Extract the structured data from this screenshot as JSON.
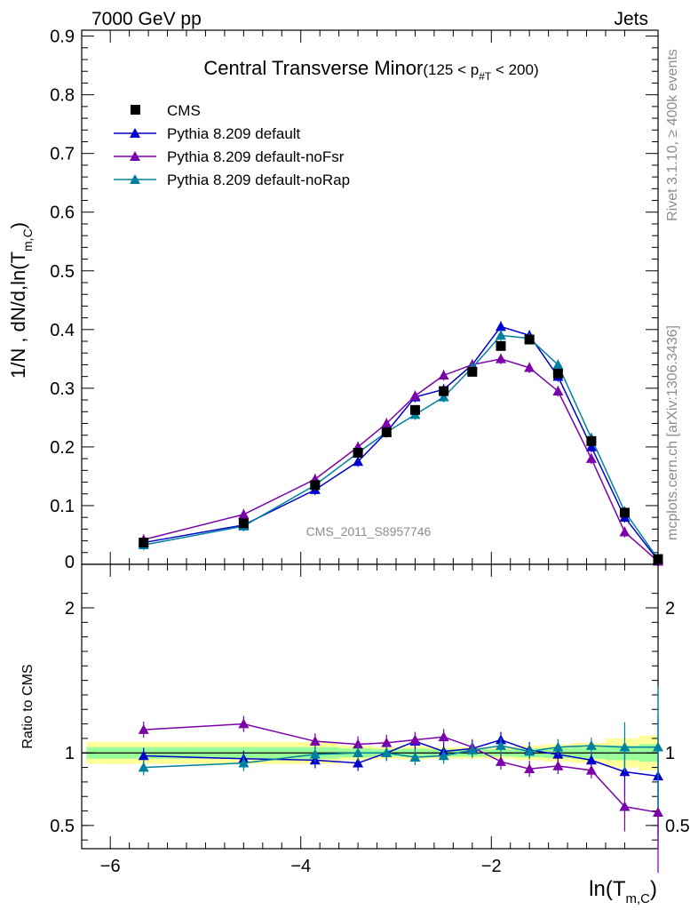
{
  "header": {
    "left": "7000 GeV pp",
    "right": "Jets"
  },
  "side_labels": {
    "rivet": "Rivet 3.1.10, ≥ 400k events",
    "mcplots": "mcplots.cern.ch [arXiv:1306.3436]"
  },
  "watermark": "CMS_2011_S8957746",
  "chart_data": [
    {
      "type": "scatter",
      "title": "Central Transverse Minor",
      "title_cut": "(125 < p",
      "title_cut_sub": "#T",
      "title_cut_end": " < 200)",
      "ylabel_parts": {
        "main": "1/N , dN/d,ln(T",
        "sub": "m,C",
        "close": ")"
      },
      "xlim": [
        -6.3,
        -0.25
      ],
      "ylim": [
        0,
        0.91
      ],
      "yticks": [
        0.1,
        0.2,
        0.3,
        0.4,
        0.5,
        0.6,
        0.7,
        0.8,
        0.9
      ],
      "ytick_labels": [
        "0.1",
        "0.2",
        "0.3",
        "0.4",
        "0.5",
        "0.6",
        "0.7",
        "0.8",
        "0.9"
      ],
      "ytick_zero": "0",
      "x": [
        -5.65,
        -4.6,
        -3.85,
        -3.4,
        -3.1,
        -2.8,
        -2.5,
        -2.2,
        -1.9,
        -1.6,
        -1.3,
        -0.95,
        -0.6,
        -0.25
      ],
      "legend": [
        "CMS",
        "Pythia 8.209 default",
        "Pythia 8.209 default-noFsr",
        "Pythia 8.209 default-noRap"
      ],
      "series": [
        {
          "name": "CMS",
          "color": "#000000",
          "marker": "square",
          "values": [
            0.037,
            0.07,
            0.135,
            0.19,
            0.225,
            0.263,
            0.295,
            0.328,
            0.372,
            0.383,
            0.325,
            0.21,
            0.088,
            0.009
          ]
        },
        {
          "name": "Pythia 8.209 default",
          "color": "#0000cc",
          "marker": "triangle",
          "values": [
            0.037,
            0.067,
            0.127,
            0.175,
            0.225,
            0.285,
            0.298,
            0.34,
            0.405,
            0.39,
            0.32,
            0.2,
            0.08,
            0.007
          ]
        },
        {
          "name": "Pythia 8.209 default-noFsr",
          "color": "#7a00aa",
          "marker": "triangle",
          "values": [
            0.042,
            0.085,
            0.145,
            0.2,
            0.24,
            0.287,
            0.322,
            0.34,
            0.35,
            0.335,
            0.295,
            0.18,
            0.055,
            0.005
          ]
        },
        {
          "name": "Pythia 8.209 default-noRap",
          "color": "#0080a0",
          "marker": "triangle",
          "values": [
            0.033,
            0.065,
            0.135,
            0.19,
            0.225,
            0.255,
            0.285,
            0.335,
            0.39,
            0.385,
            0.34,
            0.215,
            0.09,
            0.009
          ]
        }
      ]
    },
    {
      "type": "line",
      "ylabel": "Ratio to CMS",
      "xlabel_parts": {
        "main": "ln(T",
        "sub": "m,C",
        "close": ")"
      },
      "xlim": [
        -6.3,
        -0.25
      ],
      "ylim": [
        0.34,
        2.3
      ],
      "yticks": [
        0.5,
        1,
        2
      ],
      "ytick_labels": [
        "0.5",
        "1",
        "2"
      ],
      "xticks": [
        -6,
        -4,
        -2
      ],
      "xtick_labels": [
        "−6",
        "−4",
        "−2"
      ],
      "band_edges": [
        -6.25,
        -5.15,
        -4.1,
        -3.6,
        -3.25,
        -2.95,
        -2.65,
        -2.35,
        -2.05,
        -1.75,
        -1.45,
        -1.15,
        -0.8,
        -0.45,
        -0.25
      ],
      "band_yellow": [
        0.075,
        0.075,
        0.075,
        0.05,
        0.04,
        0.045,
        0.04,
        0.04,
        0.04,
        0.05,
        0.06,
        0.07,
        0.1,
        0.12
      ],
      "band_green": [
        0.04,
        0.04,
        0.04,
        0.03,
        0.025,
        0.03,
        0.025,
        0.025,
        0.025,
        0.03,
        0.035,
        0.04,
        0.05,
        0.06
      ],
      "x": [
        -5.65,
        -4.6,
        -3.85,
        -3.4,
        -3.1,
        -2.8,
        -2.5,
        -2.2,
        -1.9,
        -1.6,
        -1.3,
        -0.95,
        -0.6,
        -0.25
      ],
      "series": [
        {
          "name": "Pythia 8.209 default",
          "color": "#0000cc",
          "values": [
            0.98,
            0.96,
            0.95,
            0.93,
            1.0,
            1.08,
            1.01,
            1.03,
            1.09,
            1.02,
            0.99,
            0.95,
            0.87,
            0.84
          ]
        },
        {
          "name": "Pythia 8.209 default-noFsr",
          "color": "#7a00aa",
          "values": [
            1.16,
            1.2,
            1.08,
            1.06,
            1.07,
            1.09,
            1.11,
            1.04,
            0.94,
            0.89,
            0.91,
            0.88,
            0.63,
            0.59
          ]
        },
        {
          "name": "Pythia 8.209 default-noRap",
          "color": "#0080a0",
          "values": [
            0.9,
            0.93,
            0.99,
            1.0,
            1.0,
            0.97,
            0.98,
            1.02,
            1.05,
            1.01,
            1.04,
            1.05,
            1.04,
            1.04
          ]
        }
      ]
    }
  ]
}
